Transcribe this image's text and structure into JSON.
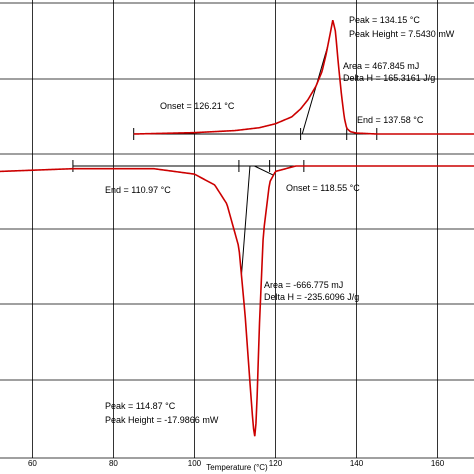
{
  "chart_data": {
    "type": "line",
    "title": "",
    "xlabel": "Temperature (°C)",
    "ylabel": "",
    "xlim": [
      52,
      169
    ],
    "grid": true,
    "x_ticks": [
      60,
      80,
      100,
      120,
      140,
      160
    ],
    "colors": {
      "curve": "#cc0000",
      "construction": "#000000",
      "grid": "#000000"
    },
    "series": [
      {
        "kind": "melting endotherm",
        "x": [
          85,
          100,
          110,
          116,
          120,
          124,
          126.2,
          128,
          130,
          131.5,
          132.5,
          133.5,
          134.15,
          134.8,
          135.5,
          136.3,
          137,
          137.58,
          138.5,
          140,
          145,
          160,
          169
        ],
        "rel": [
          0.0,
          0.012,
          0.03,
          0.055,
          0.09,
          0.15,
          0.22,
          0.3,
          0.42,
          0.55,
          0.7,
          0.88,
          1.0,
          0.9,
          0.62,
          0.34,
          0.14,
          0.05,
          0.02,
          0.008,
          0.0,
          0.0,
          0.0
        ]
      },
      {
        "kind": "crystallization exotherm",
        "x": [
          52,
          70,
          90,
          100,
          105,
          108,
          110.97,
          112.5,
          113.8,
          114.5,
          114.87,
          115.3,
          116,
          117,
          118.55,
          120,
          125,
          140,
          169
        ],
        "rel": [
          0.02,
          0.01,
          0.01,
          0.03,
          0.07,
          0.14,
          0.3,
          0.55,
          0.82,
          0.96,
          1.0,
          0.93,
          0.6,
          0.25,
          0.06,
          0.02,
          0.0,
          0.0,
          0.0
        ]
      }
    ],
    "baselines": [
      {
        "from": 85,
        "to": 145,
        "curve": 0
      },
      {
        "from": 70,
        "to": 145,
        "curve": 1
      }
    ],
    "markers": [
      {
        "curve": 0,
        "x": [
          85,
          126.2,
          137.58,
          145
        ]
      },
      {
        "curve": 1,
        "x": [
          70,
          110.97,
          118.55,
          127
        ]
      }
    ],
    "tangents": [
      {
        "curve": 0,
        "x": [
          126.6,
          132.9
        ]
      },
      {
        "curve": 1,
        "x": [
          113.7,
          111.6
        ]
      },
      {
        "curve": 1,
        "x": [
          114.8,
          119.5
        ]
      }
    ],
    "annotations": {
      "melting": {
        "peak": "Peak = 134.15 °C",
        "peak_height": "Peak Height = 7.5430 mW",
        "area": "Area = 467.845 mJ",
        "delta_h": "Delta H = 165.3161 J/g",
        "onset": "Onset = 126.21 °C",
        "end": "End = 137.58 °C"
      },
      "crystallization": {
        "end": "End = 110.97 °C",
        "onset": "Onset = 118.55 °C",
        "area": "Area = -666.775 mJ",
        "delta_h": "Delta H = -235.6096 J/g",
        "peak": "Peak = 114.87 °C",
        "peak_height": "Peak Height = -17.9866 mW"
      }
    }
  }
}
